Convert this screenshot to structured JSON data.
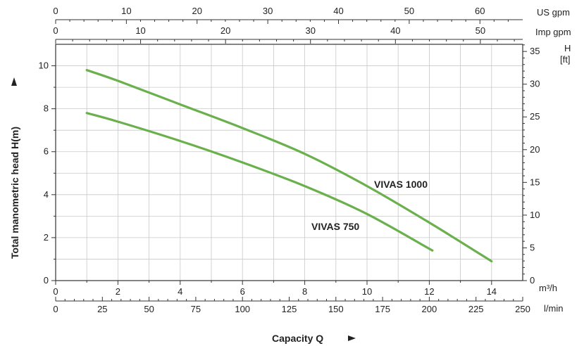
{
  "chart_data": {
    "type": "line",
    "x": [
      1.0,
      2,
      4,
      6,
      8,
      10,
      12,
      14
    ],
    "series": [
      {
        "name": "VIVAS 1000",
        "x": [
          1.0,
          2,
          4,
          6,
          8,
          10,
          12,
          14
        ],
        "values": [
          9.8,
          9.3,
          8.2,
          7.1,
          5.9,
          4.4,
          2.7,
          0.9
        ]
      },
      {
        "name": "VIVAS 750",
        "x": [
          1.0,
          2,
          4,
          6,
          8,
          10,
          12.1
        ],
        "values": [
          7.8,
          7.4,
          6.5,
          5.5,
          4.4,
          3.1,
          1.4
        ]
      }
    ],
    "xlabel": "Capacity Q",
    "ylabel": "Total manometric head H(m)",
    "xlim": [
      0,
      15
    ],
    "ylim": [
      0,
      11
    ],
    "grid": true,
    "line_color": "#6ab04c",
    "axes": {
      "bottom_primary": {
        "unit": "m³/h",
        "ticks": [
          "0",
          "2",
          "4",
          "6",
          "8",
          "10",
          "12",
          "14"
        ]
      },
      "bottom_secondary": {
        "unit": "l/min",
        "ticks": [
          "0",
          "25",
          "50",
          "75",
          "100",
          "125",
          "150",
          "175",
          "200",
          "225",
          "250"
        ]
      },
      "top_primary": {
        "unit": "US gpm",
        "ticks": [
          "0",
          "10",
          "20",
          "30",
          "40",
          "50",
          "60"
        ]
      },
      "top_secondary": {
        "unit": "Imp gpm",
        "ticks": [
          "0",
          "10",
          "20",
          "30",
          "40",
          "50"
        ]
      },
      "left": {
        "ticks": [
          "0",
          "2",
          "4",
          "6",
          "8",
          "10"
        ]
      },
      "right": {
        "unit_line1": "H",
        "unit_line2": "[ft]",
        "ticks": [
          "0",
          "5",
          "10",
          "15",
          "20",
          "25",
          "30",
          "35"
        ]
      }
    }
  }
}
